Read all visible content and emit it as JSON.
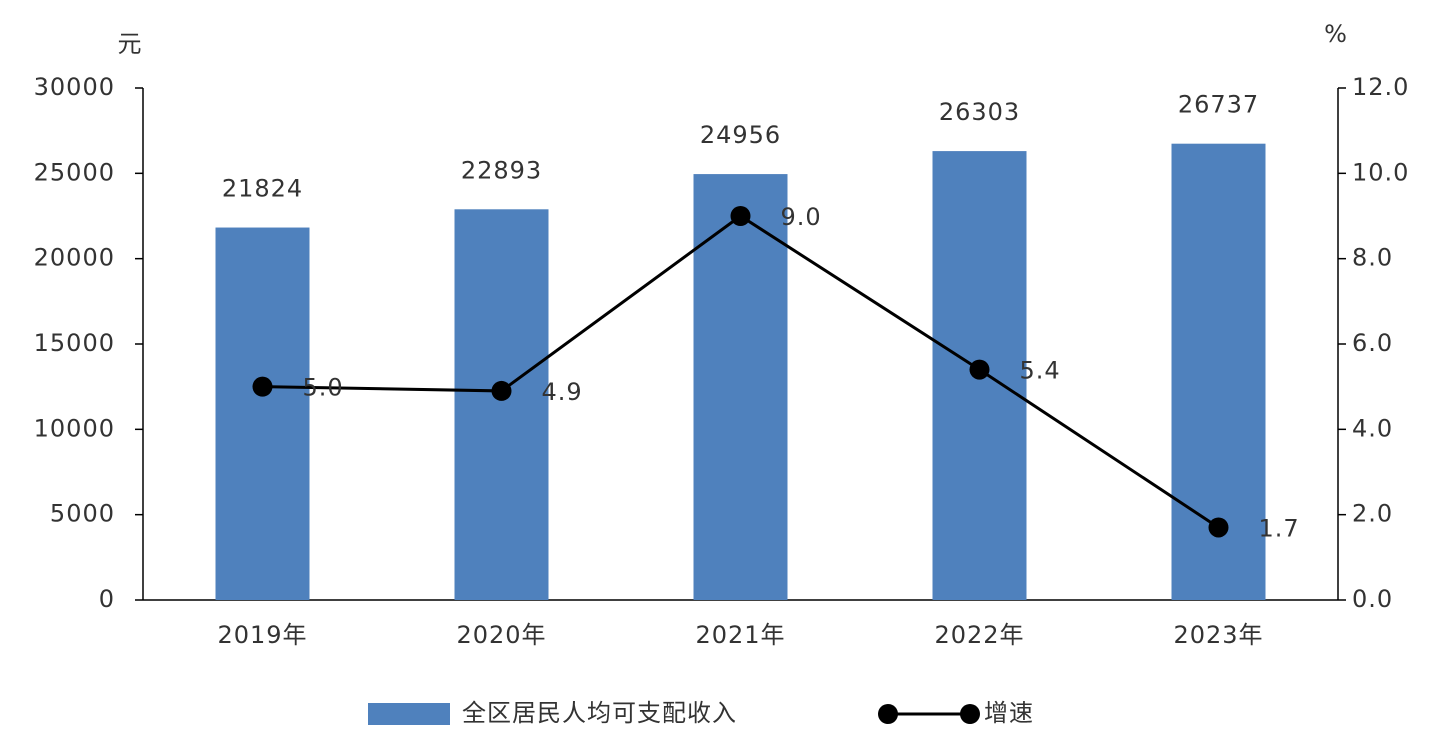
{
  "chart_data": {
    "type": "bar",
    "categories": [
      "2019年",
      "2020年",
      "2021年",
      "2022年",
      "2023年"
    ],
    "y_label": "元",
    "y2_label": "%",
    "series": [
      {
        "name": "全区居民人均可支配收入",
        "type": "bar",
        "color": "#4f81bd",
        "values": [
          21824,
          22893,
          24956,
          26303,
          26737
        ]
      },
      {
        "name": "增速",
        "type": "line",
        "axis": "y2",
        "color": "#000000",
        "values": [
          5.0,
          4.9,
          9.0,
          5.4,
          1.7
        ],
        "value_labels": [
          "5.0",
          "4.9",
          "9.0",
          "5.4",
          "1.7"
        ]
      }
    ],
    "ylim": [
      0,
      30000
    ],
    "yticks": [
      0,
      5000,
      10000,
      15000,
      20000,
      25000,
      30000
    ],
    "y2lim": [
      0,
      12
    ],
    "y2ticks": [
      {
        "value": 0,
        "label": "0.0"
      },
      {
        "value": 2,
        "label": "2.0"
      },
      {
        "value": 4,
        "label": "4.0"
      },
      {
        "value": 6,
        "label": "6.0"
      },
      {
        "value": 8,
        "label": "8.0"
      },
      {
        "value": 10,
        "label": "10.0"
      },
      {
        "value": 12,
        "label": "12.0"
      }
    ],
    "grid": false,
    "legend": "bottom"
  }
}
